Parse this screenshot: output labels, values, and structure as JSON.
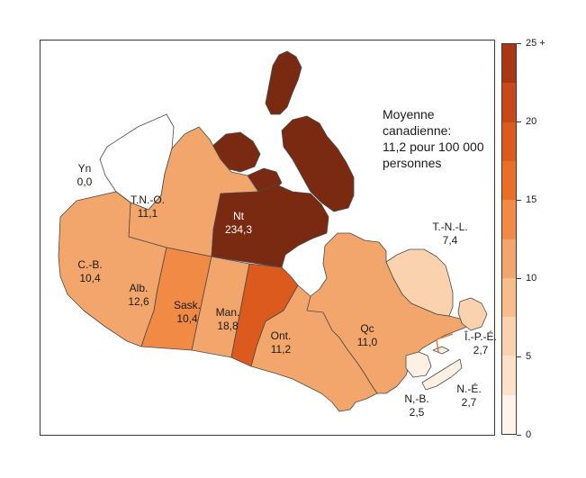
{
  "note": {
    "line1": "Moyenne canadienne:",
    "line2": "11,2 pour 100 000",
    "line3": "personnes"
  },
  "regions": [
    {
      "name": "Yn",
      "value": "0,0",
      "v": 0.0,
      "color": "#ffffff"
    },
    {
      "name": "T.N.-O.",
      "value": "11,1",
      "v": 11.1,
      "color": "#f3a66b"
    },
    {
      "name": "Nt",
      "value": "234,3",
      "v": 234.3,
      "color": "#7a2a10"
    },
    {
      "name": "C.-B.",
      "value": "10,4",
      "v": 10.4,
      "color": "#f3a66b"
    },
    {
      "name": "Alb.",
      "value": "12,6",
      "v": 12.6,
      "color": "#f08a45"
    },
    {
      "name": "Sask.",
      "value": "10,4",
      "v": 10.4,
      "color": "#f3a66b"
    },
    {
      "name": "Man.",
      "value": "18,8",
      "v": 18.8,
      "color": "#dc5a1d"
    },
    {
      "name": "Ont.",
      "value": "11,2",
      "v": 11.2,
      "color": "#f3a66b"
    },
    {
      "name": "Qc",
      "value": "11,0",
      "v": 11.0,
      "color": "#f3a66b"
    },
    {
      "name": "T.-N.-L.",
      "value": "7,4",
      "v": 7.4,
      "color": "#fad2ad"
    },
    {
      "name": "Î.-P.-É.",
      "value": "2,7",
      "v": 2.7,
      "color": "#fef0e3"
    },
    {
      "name": "N.-É.",
      "value": "2,7",
      "v": 2.7,
      "color": "#fef0e3"
    },
    {
      "name": "N,-B.",
      "value": "2,5",
      "v": 2.5,
      "color": "#fef0e3"
    }
  ],
  "legend": {
    "labels": [
      "0",
      "5",
      "10",
      "15",
      "20",
      "25 +"
    ],
    "colors": [
      "#fff4eb",
      "#fde2c9",
      "#fad2ad",
      "#f7bd8c",
      "#f3a66b",
      "#f08a45",
      "#ea6f26",
      "#dc5a1d",
      "#c9481a",
      "#a83712"
    ]
  },
  "colors": {
    "border": "#3a3a3a",
    "ocean": "#ffffff",
    "line": "#7a2a10"
  }
}
